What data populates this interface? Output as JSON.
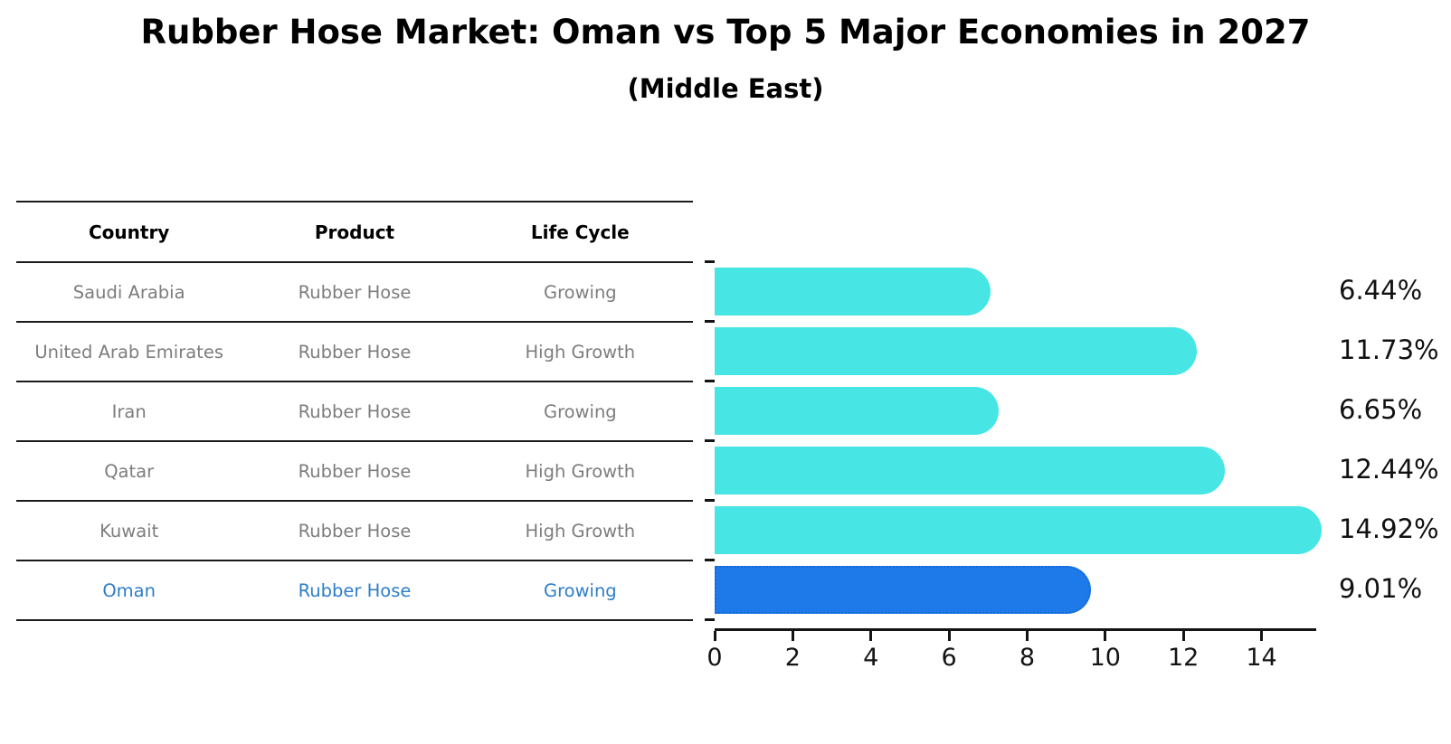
{
  "title": "Rubber Hose Market: Oman vs Top 5 Major Economies in 2027",
  "subtitle": "(Middle East)",
  "colors": {
    "bar_default": "#48E5E5",
    "bar_highlight": "#1D7AE8",
    "bar_highlight_border": "#1668DA",
    "highlight_text": "#2E7EC7",
    "row_text": "#7d7d7d",
    "header_text": "#000000"
  },
  "table": {
    "columns": [
      "Country",
      "Product",
      "Life Cycle"
    ],
    "rows": [
      {
        "country": "Saudi Arabia",
        "product": "Rubber Hose",
        "life_cycle": "Growing",
        "highlight": false
      },
      {
        "country": "United Arab Emirates",
        "product": "Rubber Hose",
        "life_cycle": "High Growth",
        "highlight": false
      },
      {
        "country": "Iran",
        "product": "Rubber Hose",
        "life_cycle": "Growing",
        "highlight": false
      },
      {
        "country": "Qatar",
        "product": "Rubber Hose",
        "life_cycle": "High Growth",
        "highlight": false
      },
      {
        "country": "Kuwait",
        "product": "Rubber Hose",
        "life_cycle": "High Growth",
        "highlight": false
      },
      {
        "country": "Oman",
        "product": "Rubber Hose",
        "life_cycle": "Growing",
        "highlight": true
      }
    ]
  },
  "chart_data": {
    "type": "bar",
    "orientation": "horizontal",
    "title": "Rubber Hose Market: Oman vs Top 5 Major Economies in 2027",
    "subtitle": "(Middle East)",
    "categories": [
      "Saudi Arabia",
      "United Arab Emirates",
      "Iran",
      "Qatar",
      "Kuwait",
      "Oman"
    ],
    "values": [
      6.44,
      11.73,
      6.65,
      12.44,
      14.92,
      9.01
    ],
    "labels": [
      "6.44%",
      "11.73%",
      "6.65%",
      "12.44%",
      "14.92%",
      "9.01%"
    ],
    "highlight_index": 5,
    "x_ticks": [
      0,
      2,
      4,
      6,
      8,
      10,
      12,
      14
    ],
    "xlim": [
      0,
      15.4
    ],
    "xlabel": "",
    "ylabel": "",
    "grid": false,
    "legend": false
  }
}
